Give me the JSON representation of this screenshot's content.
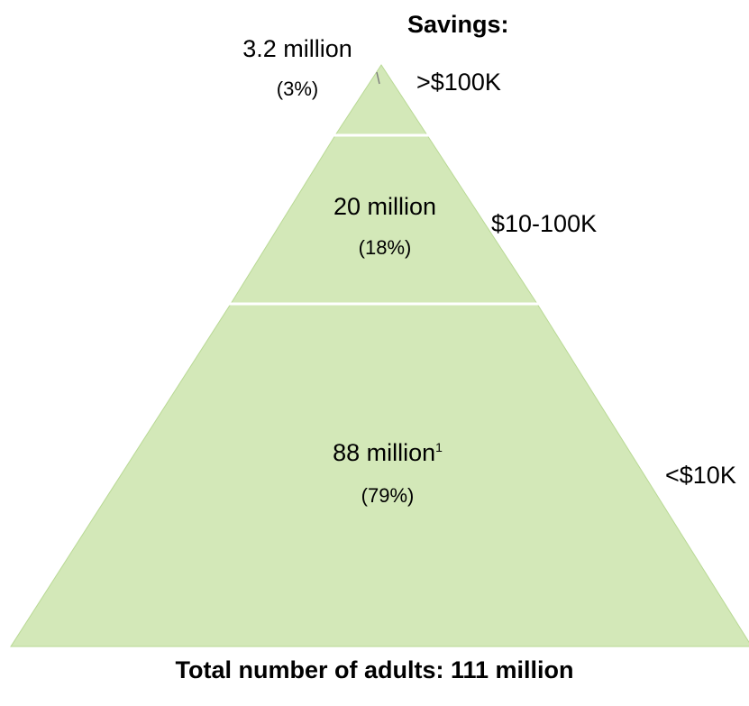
{
  "legend": {
    "heading": "Savings:"
  },
  "tiers": [
    {
      "population": "3.2 million",
      "share": "(3%)",
      "savings": ">$100K"
    },
    {
      "population": "20 million",
      "share": "(18%)",
      "savings": "$10-100K"
    },
    {
      "population": "88 million",
      "footnote_marker": "1",
      "share": "(79%)",
      "savings": "<$10K"
    }
  ],
  "total": "Total number of adults: 111 million",
  "colors": {
    "pyramid_fill": "#d3e8b8",
    "pyramid_edge": "#b9d995",
    "separator": "#ffffff",
    "leader_line": "#7f7f7f"
  }
}
